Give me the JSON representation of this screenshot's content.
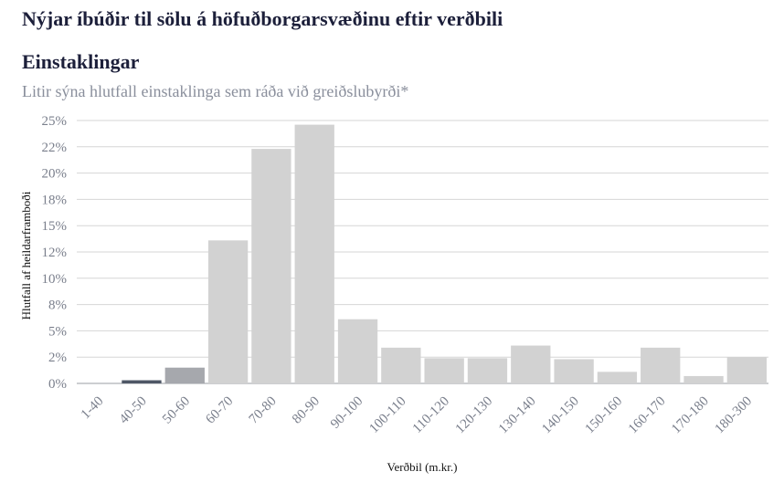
{
  "chart_data": {
    "type": "bar",
    "title": "Nýjar íbúðir til sölu á höfuðborgarsvæðinu eftir verðbili",
    "subtitle": "Einstaklingar",
    "note": "Litir sýna hlutfall einstaklinga sem ráða við greiðslubyrði*",
    "xlabel": "Verðbil (m.kr.)",
    "ylabel": "Hlutfall af heildarframboði",
    "ylim": [
      0,
      25
    ],
    "yticks": [
      0,
      2.5,
      5,
      7.5,
      10,
      12.5,
      15,
      17.5,
      20,
      22.5,
      25
    ],
    "ytick_labels": [
      "0%",
      "2%",
      "5%",
      "8%",
      "10%",
      "12%",
      "15%",
      "18%",
      "20%",
      "22%",
      "25%"
    ],
    "categories": [
      "1-40",
      "40-50",
      "50-60",
      "60-70",
      "70-80",
      "80-90",
      "90-100",
      "100-110",
      "110-120",
      "120-130",
      "130-140",
      "140-150",
      "150-160",
      "160-170",
      "170-180",
      "180-300"
    ],
    "values": [
      0,
      0.3,
      1.5,
      13.6,
      22.3,
      24.6,
      6.1,
      3.4,
      2.4,
      2.4,
      3.6,
      2.3,
      1.1,
      3.4,
      0.7,
      2.5
    ],
    "colors": [
      "#d2d2d2",
      "#4e5766",
      "#a6a8ad",
      "#d2d2d2",
      "#d2d2d2",
      "#d2d2d2",
      "#d2d2d2",
      "#d2d2d2",
      "#d2d2d2",
      "#d2d2d2",
      "#d2d2d2",
      "#d2d2d2",
      "#d2d2d2",
      "#d2d2d2",
      "#d2d2d2",
      "#d2d2d2"
    ],
    "grid": true
  }
}
